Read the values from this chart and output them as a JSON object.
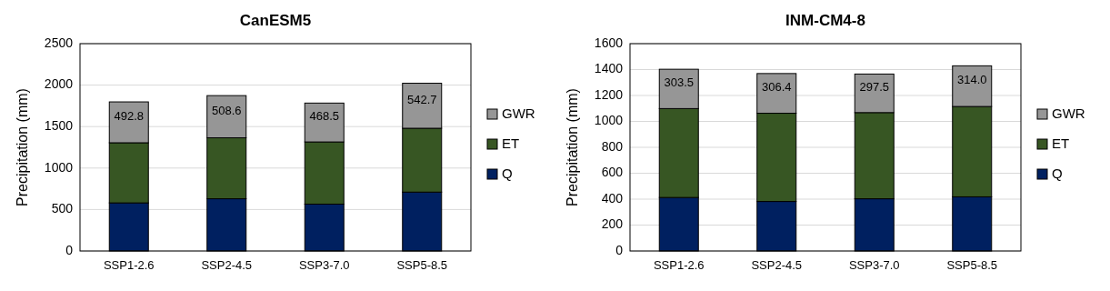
{
  "chart_data": [
    {
      "type": "bar",
      "title": "CanESM5",
      "ylabel": "Precipitation  (mm)",
      "categories": [
        "SSP1-2.6",
        "SSP2-4.5",
        "SSP3-7.0",
        "SSP5-8.5"
      ],
      "stacked": true,
      "ylim": [
        0,
        2500
      ],
      "yticks": [
        0,
        500,
        1000,
        1500,
        2000,
        2500
      ],
      "grid": "y",
      "legend": "right",
      "series": [
        {
          "name": "Q",
          "color": "#002060",
          "values": [
            580,
            630,
            565,
            710
          ]
        },
        {
          "name": "ET",
          "color": "#375623",
          "values": [
            725,
            735,
            750,
            770
          ]
        },
        {
          "name": "GWR",
          "color": "#969696",
          "values": [
            492.8,
            508.6,
            468.5,
            542.7
          ],
          "value_labels": [
            "492.8",
            "508.6",
            "468.5",
            "542.7"
          ]
        }
      ]
    },
    {
      "type": "bar",
      "title": "INM-CM4-8",
      "ylabel": "Precipitation  (mm)",
      "categories": [
        "SSP1-2.6",
        "SSP2-4.5",
        "SSP3-7.0",
        "SSP5-8.5"
      ],
      "stacked": true,
      "ylim": [
        0,
        1600
      ],
      "yticks": [
        0,
        200,
        400,
        600,
        800,
        1000,
        1200,
        1400,
        1600
      ],
      "grid": "y",
      "legend": "right",
      "series": [
        {
          "name": "Q",
          "color": "#002060",
          "values": [
            413,
            382,
            403,
            418
          ]
        },
        {
          "name": "ET",
          "color": "#375623",
          "values": [
            686,
            681,
            665,
            697
          ]
        },
        {
          "name": "GWR",
          "color": "#969696",
          "values": [
            303.5,
            306.4,
            297.5,
            314.0
          ],
          "value_labels": [
            "303.5",
            "306.4",
            "297.5",
            "314.0"
          ]
        }
      ]
    }
  ]
}
